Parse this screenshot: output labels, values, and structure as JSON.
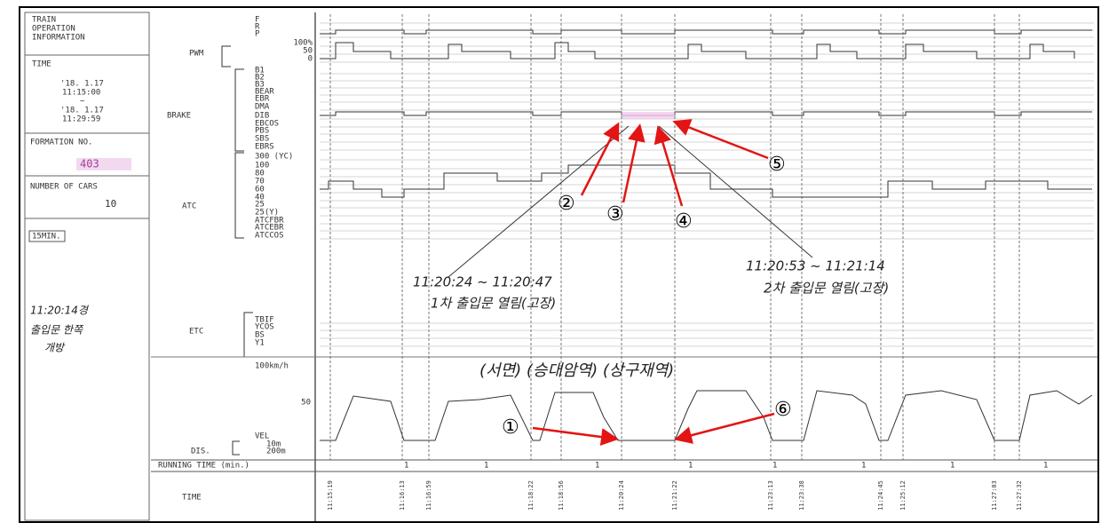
{
  "left_panel": {
    "title": [
      "TRAIN",
      "OPERATION",
      "INFORMATION"
    ],
    "time_label": "TIME",
    "start_date": "'18. 1.17",
    "start_time": "11:15:00",
    "range_sep": "~",
    "end_date": "'18. 1.17",
    "end_time": "11:29:59",
    "formation_label": "FORMATION NO.",
    "formation_no": "403",
    "cars_label": "NUMBER OF CARS",
    "cars": "10",
    "scale": "15MIN.",
    "note": [
      "11:20:14경",
      "출입문 한쪽",
      "개방"
    ]
  },
  "groups": {
    "pwm": "PWM",
    "brake": "BRAKE",
    "atc": "ATC",
    "etc": "ETC",
    "dis": "DIS.",
    "running_time": "RUNNING TIME (min.)",
    "time": "TIME"
  },
  "signals": [
    "F",
    "R",
    "P",
    "100%",
    "50",
    "0",
    "B1",
    "B2",
    "B3",
    "BEAR",
    "EBR",
    "DMA",
    "DIB",
    "EBCOS",
    "PBS",
    "SBS",
    "EBRS",
    "300 (YC)",
    "100",
    "80",
    "70",
    "60",
    "40",
    "25",
    "25(Y)",
    "ATCFBR",
    "ATCEBR",
    "ATCCOS"
  ],
  "etc_signals": [
    "TBIF",
    "YCOS",
    "BS",
    "Y1"
  ],
  "speed_scale": {
    "top": "100km/h",
    "mid": "50",
    "vel": "VEL",
    "dist1": "10m",
    "dist2": "200m"
  },
  "running_marks": [
    "1",
    "1",
    "1",
    "1",
    "1",
    "1",
    "1",
    "1"
  ],
  "times": [
    "11:15:19",
    "11:16:13",
    "11:16:59",
    "11:18:22",
    "11:18:56",
    "11:20:24",
    "11:21:22",
    "11:23:13",
    "11:23:38",
    "11:24:45",
    "11:25:12",
    "11:27:03",
    "11:27:32"
  ],
  "annotations": {
    "first_range": "11:20:24 ~ 11:20:47",
    "first_desc": "1차 출입문 열림(고장)",
    "second_range": "11:20:53 ~ 11:21:14",
    "second_desc": "2차 출입문 열림(고장)",
    "stations": "(서면) (승대암역) (상구재역)"
  },
  "markers": [
    "①",
    "②",
    "③",
    "④",
    "⑤",
    "⑥"
  ]
}
